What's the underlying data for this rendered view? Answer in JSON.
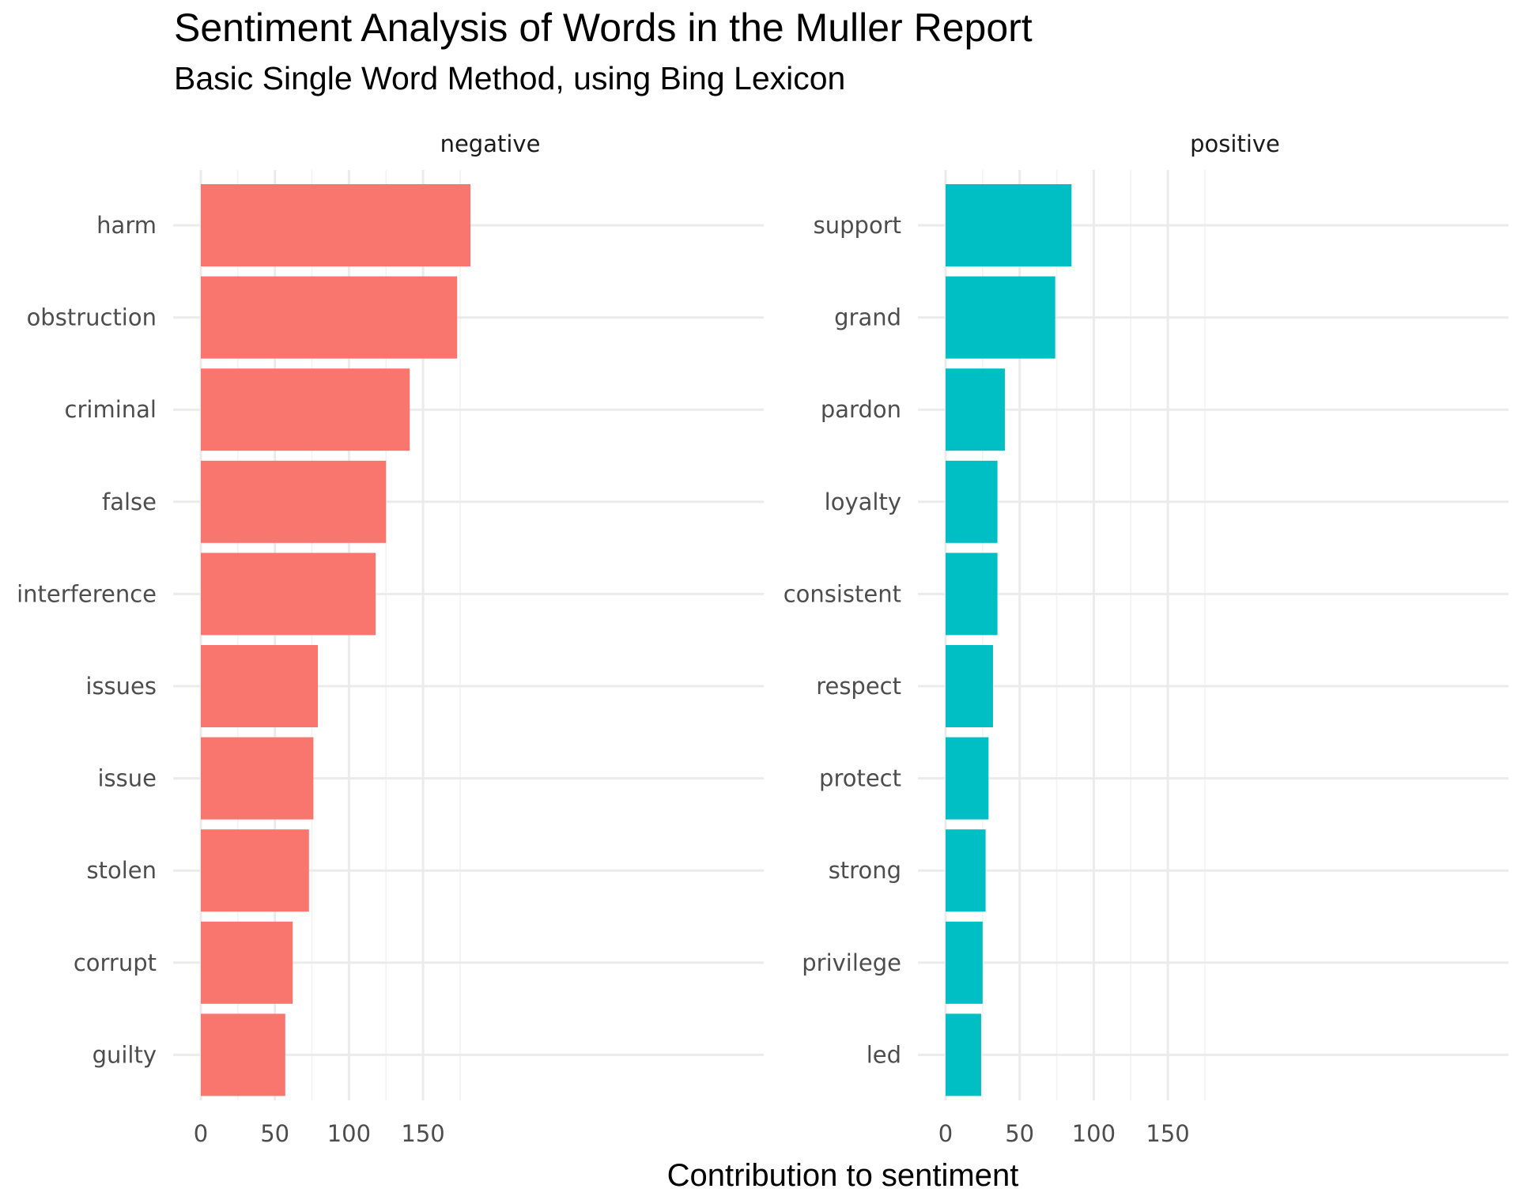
{
  "chart_data": {
    "type": "bar",
    "orientation": "horizontal",
    "title": "Sentiment Analysis of Words in the Muller Report",
    "subtitle": "Basic Single Word Method, using Bing Lexicon",
    "xlabel": "Contribution to sentiment",
    "ylabel": "",
    "xlim": [
      0,
      190
    ],
    "x_ticks": [
      0,
      50,
      100,
      150
    ],
    "x_tick_labels": [
      "0",
      "50",
      "100",
      "150"
    ],
    "grid": true,
    "legend": "none",
    "panels": [
      {
        "name": "negative",
        "color": "#F8766D",
        "categories": [
          "harm",
          "obstruction",
          "criminal",
          "false",
          "interference",
          "issues",
          "issue",
          "stolen",
          "corrupt",
          "guilty"
        ],
        "values": [
          182,
          173,
          141,
          125,
          118,
          79,
          76,
          73,
          62,
          57
        ]
      },
      {
        "name": "positive",
        "color": "#00BFC4",
        "categories": [
          "support",
          "grand",
          "pardon",
          "loyalty",
          "consistent",
          "respect",
          "protect",
          "strong",
          "privilege",
          "led"
        ],
        "values": [
          85,
          74,
          40,
          35,
          35,
          32,
          29,
          27,
          25,
          24
        ]
      }
    ]
  }
}
